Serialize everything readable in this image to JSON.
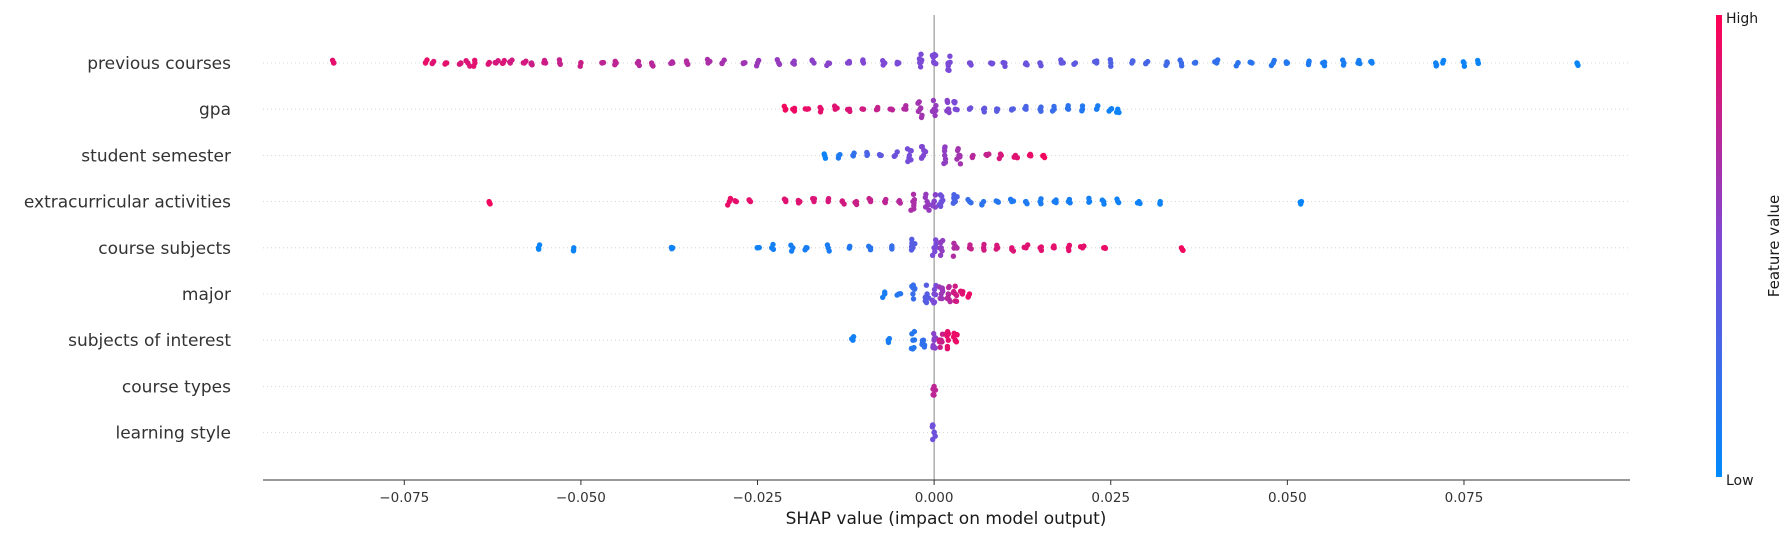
{
  "chart_data": {
    "type": "scatter",
    "subtype": "shap-beeswarm",
    "title": "",
    "xlabel": "SHAP value (impact on model output)",
    "ylabel": "",
    "xlim": [
      -0.095,
      0.0985
    ],
    "x_ticks": [
      -0.075,
      -0.05,
      -0.025,
      0.0,
      0.025,
      0.05,
      0.075
    ],
    "x_tick_labels": [
      "−0.075",
      "−0.050",
      "−0.025",
      "0.000",
      "0.025",
      "0.050",
      "0.075"
    ],
    "zero_line": 0.0,
    "grid": false,
    "row_guides": "dotted",
    "features": [
      "previous courses",
      "gpa",
      "student semester",
      "extracurricular activities",
      "course subjects",
      "major",
      "subjects of interest",
      "course types",
      "learning style"
    ],
    "series": [
      {
        "feature": "previous courses",
        "points": [
          [
            -0.085,
            0.9
          ],
          [
            -0.072,
            0.92
          ],
          [
            -0.071,
            0.88
          ],
          [
            -0.069,
            0.9
          ],
          [
            -0.067,
            0.85
          ],
          [
            -0.066,
            0.86
          ],
          [
            -0.065,
            0.9
          ],
          [
            -0.063,
            0.87
          ],
          [
            -0.062,
            0.84
          ],
          [
            -0.061,
            0.86
          ],
          [
            -0.06,
            0.82
          ],
          [
            -0.058,
            0.83
          ],
          [
            -0.057,
            0.8
          ],
          [
            -0.055,
            0.81
          ],
          [
            -0.053,
            0.78
          ],
          [
            -0.05,
            0.8
          ],
          [
            -0.047,
            0.75
          ],
          [
            -0.045,
            0.76
          ],
          [
            -0.042,
            0.72
          ],
          [
            -0.04,
            0.73
          ],
          [
            -0.037,
            0.7
          ],
          [
            -0.035,
            0.71
          ],
          [
            -0.032,
            0.68
          ],
          [
            -0.03,
            0.66
          ],
          [
            -0.027,
            0.64
          ],
          [
            -0.025,
            0.62
          ],
          [
            -0.022,
            0.6
          ],
          [
            -0.02,
            0.58
          ],
          [
            -0.017,
            0.56
          ],
          [
            -0.015,
            0.55
          ],
          [
            -0.012,
            0.53
          ],
          [
            -0.01,
            0.52
          ],
          [
            -0.007,
            0.51
          ],
          [
            -0.005,
            0.5
          ],
          [
            -0.002,
            0.5
          ],
          [
            0.0,
            0.5
          ],
          [
            0.002,
            0.5
          ],
          [
            0.005,
            0.48
          ],
          [
            0.008,
            0.46
          ],
          [
            0.01,
            0.45
          ],
          [
            0.013,
            0.43
          ],
          [
            0.015,
            0.42
          ],
          [
            0.018,
            0.4
          ],
          [
            0.02,
            0.38
          ],
          [
            0.023,
            0.35
          ],
          [
            0.025,
            0.32
          ],
          [
            0.028,
            0.3
          ],
          [
            0.03,
            0.28
          ],
          [
            0.033,
            0.26
          ],
          [
            0.035,
            0.24
          ],
          [
            0.037,
            0.22
          ],
          [
            0.04,
            0.2
          ],
          [
            0.043,
            0.18
          ],
          [
            0.045,
            0.17
          ],
          [
            0.048,
            0.15
          ],
          [
            0.05,
            0.14
          ],
          [
            0.053,
            0.12
          ],
          [
            0.055,
            0.11
          ],
          [
            0.058,
            0.1
          ],
          [
            0.06,
            0.09
          ],
          [
            0.062,
            0.08
          ],
          [
            0.071,
            0.06
          ],
          [
            0.072,
            0.05
          ],
          [
            0.075,
            0.05
          ],
          [
            0.077,
            0.04
          ],
          [
            0.091,
            0.03
          ]
        ]
      },
      {
        "feature": "gpa",
        "points": [
          [
            -0.021,
            0.95
          ],
          [
            -0.02,
            0.94
          ],
          [
            -0.018,
            0.92
          ],
          [
            -0.016,
            0.9
          ],
          [
            -0.014,
            0.88
          ],
          [
            -0.012,
            0.86
          ],
          [
            -0.01,
            0.82
          ],
          [
            -0.008,
            0.78
          ],
          [
            -0.006,
            0.74
          ],
          [
            -0.004,
            0.7
          ],
          [
            -0.002,
            0.65
          ],
          [
            0.0,
            0.6
          ],
          [
            0.002,
            0.55
          ],
          [
            0.003,
            0.5
          ],
          [
            0.005,
            0.45
          ],
          [
            0.007,
            0.4
          ],
          [
            0.009,
            0.37
          ],
          [
            0.011,
            0.34
          ],
          [
            0.013,
            0.3
          ],
          [
            0.015,
            0.26
          ],
          [
            0.017,
            0.22
          ],
          [
            0.019,
            0.18
          ],
          [
            0.021,
            0.14
          ],
          [
            0.023,
            0.1
          ],
          [
            0.025,
            0.07
          ],
          [
            0.026,
            0.05
          ]
        ]
      },
      {
        "feature": "student semester",
        "points": [
          [
            -0.0155,
            0.05
          ],
          [
            -0.0135,
            0.12
          ],
          [
            -0.0115,
            0.2
          ],
          [
            -0.0095,
            0.3
          ],
          [
            -0.0075,
            0.38
          ],
          [
            -0.0055,
            0.44
          ],
          [
            -0.0035,
            0.48
          ],
          [
            -0.0015,
            0.52
          ],
          [
            0.0015,
            0.58
          ],
          [
            0.0035,
            0.65
          ],
          [
            0.0055,
            0.72
          ],
          [
            0.0075,
            0.78
          ],
          [
            0.0095,
            0.84
          ],
          [
            0.0115,
            0.88
          ],
          [
            0.0135,
            0.92
          ],
          [
            0.0155,
            0.95
          ]
        ]
      },
      {
        "feature": "extracurricular activities",
        "points": [
          [
            -0.063,
            0.95
          ],
          [
            -0.029,
            0.92
          ],
          [
            -0.028,
            0.9
          ],
          [
            -0.026,
            0.9
          ],
          [
            -0.021,
            0.88
          ],
          [
            -0.019,
            0.88
          ],
          [
            -0.017,
            0.86
          ],
          [
            -0.015,
            0.85
          ],
          [
            -0.013,
            0.83
          ],
          [
            -0.011,
            0.8
          ],
          [
            -0.009,
            0.78
          ],
          [
            -0.007,
            0.75
          ],
          [
            -0.005,
            0.72
          ],
          [
            -0.003,
            0.68
          ],
          [
            -0.001,
            0.6
          ],
          [
            0.0,
            0.55
          ],
          [
            0.001,
            0.45
          ],
          [
            0.003,
            0.3
          ],
          [
            0.005,
            0.22
          ],
          [
            0.007,
            0.18
          ],
          [
            0.009,
            0.15
          ],
          [
            0.011,
            0.13
          ],
          [
            0.013,
            0.12
          ],
          [
            0.015,
            0.11
          ],
          [
            0.017,
            0.1
          ],
          [
            0.019,
            0.09
          ],
          [
            0.022,
            0.08
          ],
          [
            0.024,
            0.07
          ],
          [
            0.026,
            0.06
          ],
          [
            0.029,
            0.06
          ],
          [
            0.032,
            0.05
          ],
          [
            0.052,
            0.04
          ]
        ]
      },
      {
        "feature": "course subjects",
        "points": [
          [
            -0.056,
            0.04
          ],
          [
            -0.051,
            0.05
          ],
          [
            -0.037,
            0.06
          ],
          [
            -0.025,
            0.07
          ],
          [
            -0.023,
            0.08
          ],
          [
            -0.02,
            0.09
          ],
          [
            -0.018,
            0.1
          ],
          [
            -0.015,
            0.11
          ],
          [
            -0.012,
            0.13
          ],
          [
            -0.009,
            0.16
          ],
          [
            -0.006,
            0.22
          ],
          [
            -0.003,
            0.35
          ],
          [
            0.0,
            0.5
          ],
          [
            0.001,
            0.58
          ],
          [
            0.003,
            0.7
          ],
          [
            0.005,
            0.78
          ],
          [
            0.007,
            0.82
          ],
          [
            0.009,
            0.85
          ],
          [
            0.011,
            0.87
          ],
          [
            0.013,
            0.88
          ],
          [
            0.015,
            0.89
          ],
          [
            0.017,
            0.9
          ],
          [
            0.019,
            0.9
          ],
          [
            0.021,
            0.91
          ],
          [
            0.024,
            0.92
          ],
          [
            0.035,
            0.95
          ]
        ]
      },
      {
        "feature": "major",
        "points": [
          [
            -0.007,
            0.1
          ],
          [
            -0.005,
            0.15
          ],
          [
            -0.003,
            0.22
          ],
          [
            -0.001,
            0.35
          ],
          [
            0.0,
            0.5
          ],
          [
            0.001,
            0.62
          ],
          [
            0.002,
            0.72
          ],
          [
            0.003,
            0.82
          ],
          [
            0.004,
            0.88
          ],
          [
            0.005,
            0.92
          ]
        ]
      },
      {
        "feature": "subjects of interest",
        "points": [
          [
            -0.0115,
            0.08
          ],
          [
            -0.0065,
            0.1
          ],
          [
            -0.003,
            0.15
          ],
          [
            -0.0015,
            0.2
          ],
          [
            0.0,
            0.55
          ],
          [
            0.001,
            0.8
          ],
          [
            0.002,
            0.9
          ],
          [
            0.003,
            0.92
          ]
        ]
      },
      {
        "feature": "course types",
        "points": [
          [
            0.0,
            0.75
          ]
        ]
      },
      {
        "feature": "learning style",
        "points": [
          [
            0.0,
            0.45
          ]
        ]
      }
    ],
    "colorbar": {
      "label": "Feature value",
      "high_label": "High",
      "low_label": "Low",
      "low_color": "#008afb",
      "mid_color": "#a321c6",
      "high_color": "#ff0052"
    }
  }
}
